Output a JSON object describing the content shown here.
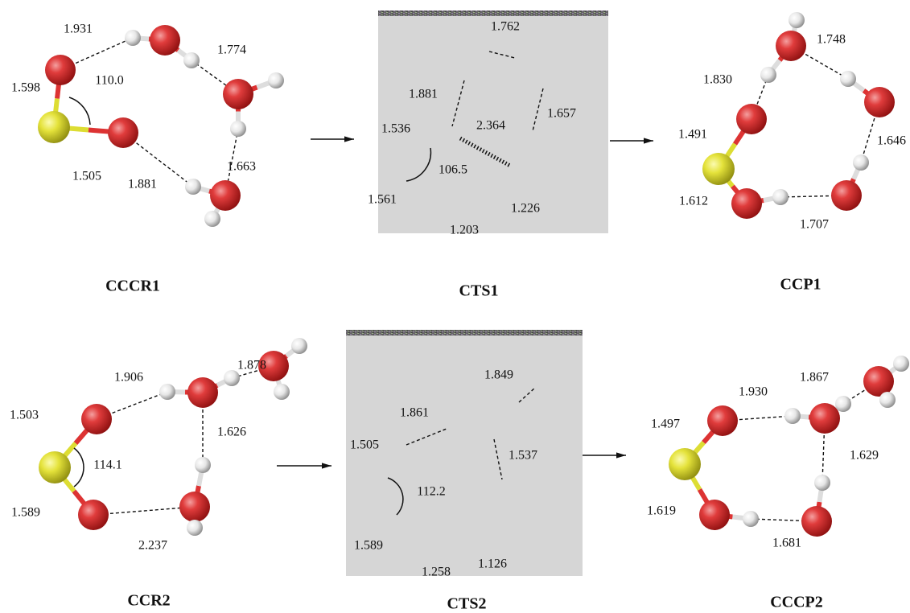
{
  "panels": [
    {
      "title": "CCCR1",
      "labels": [
        "1.931",
        "1.774",
        "110.0",
        "1.598",
        "1.505",
        "1.881",
        "1.663"
      ]
    },
    {
      "title": "CTS1",
      "labels": [
        "1.762",
        "1.881",
        "1.536",
        "2.364",
        "1.657",
        "106.5",
        "1.561",
        "1.226",
        "1.203"
      ]
    },
    {
      "title": "CCP1",
      "labels": [
        "1.748",
        "1.830",
        "1.491",
        "1.646",
        "1.612",
        "1.707"
      ]
    },
    {
      "title": "CCR2",
      "labels": [
        "1.878",
        "1.906",
        "1.503",
        "1.626",
        "114.1",
        "1.589",
        "2.237"
      ]
    },
    {
      "title": "CTS2",
      "labels": [
        "1.849",
        "1.861",
        "1.505",
        "1.537",
        "112.2",
        "1.589",
        "1.126",
        "1.258"
      ]
    },
    {
      "title": "CCCP2",
      "labels": [
        "1.930",
        "1.867",
        "1.497",
        "1.629",
        "1.619",
        "1.681"
      ]
    }
  ]
}
